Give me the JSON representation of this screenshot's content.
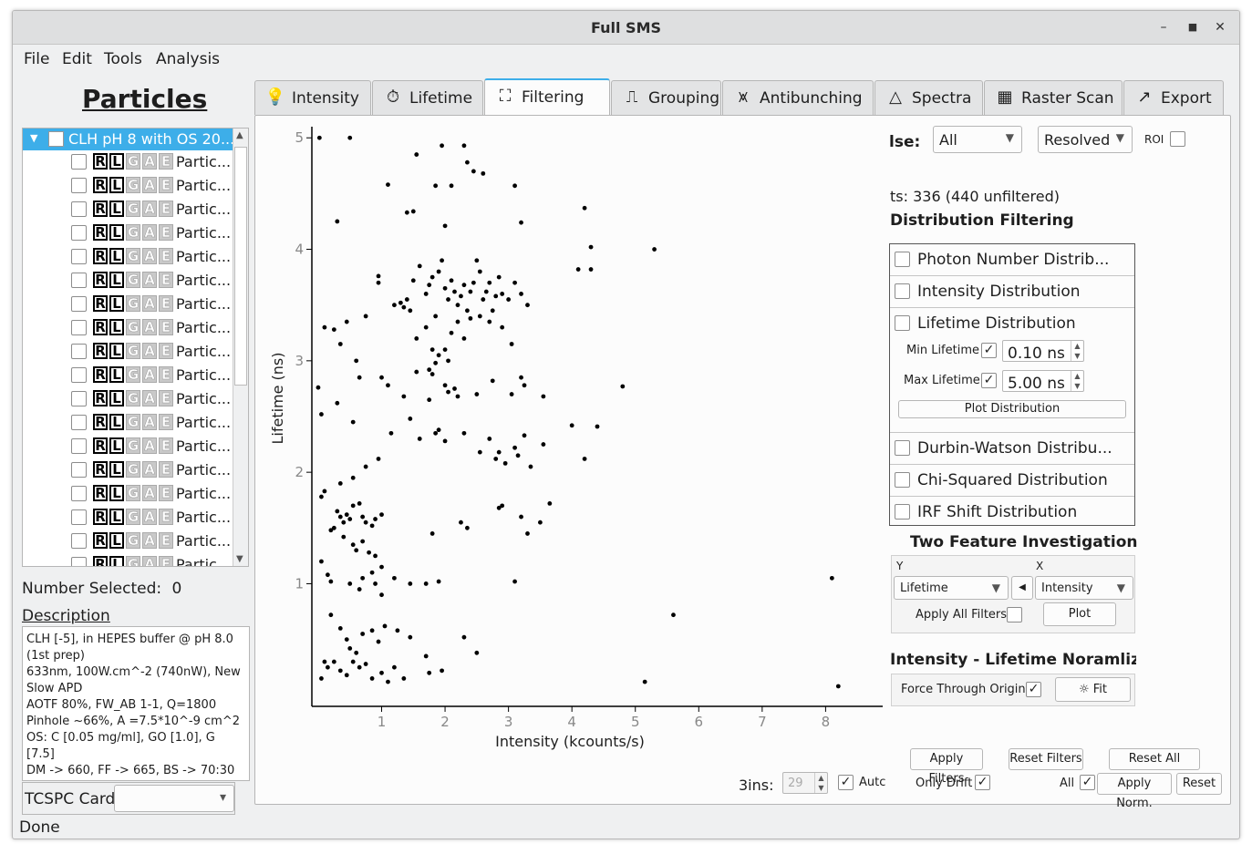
{
  "window": {
    "title": "Full SMS"
  },
  "menu": [
    "File",
    "Edit",
    "Tools",
    "Analysis"
  ],
  "left": {
    "title": "Particles",
    "root_label": "CLH pH 8 with OS 20...",
    "particle_label": "Partic...",
    "badges": [
      "R",
      "L",
      "G",
      "A",
      "E"
    ],
    "number_selected_label": "Number Selected:",
    "number_selected": "0",
    "description_label": "Description",
    "description": [
      "CLH [-5], in HEPES buffer @ pH 8.0 (1st prep)",
      "633nm, 100W.cm^-2 (740nW), New Slow APD",
      "AOTF 80%, FW_AB 1-1, Q=1800",
      "Pinhole ~66%, A =7.5*10^-9 cm^2",
      "OS: C [0.05 mg/ml], GO [1.0], G [7.5]",
      "DM -> 660, FF -> 665, BS -> 70:30"
    ],
    "tcspc_label": "TCSPC Card:"
  },
  "tabs": [
    {
      "label": "Intensity",
      "icon": "lightbulb-icon"
    },
    {
      "label": "Lifetime",
      "icon": "stopwatch-icon"
    },
    {
      "label": "Filtering",
      "icon": "filter-chart-icon"
    },
    {
      "label": "Grouping",
      "icon": "grouping-icon"
    },
    {
      "label": "Antibunching",
      "icon": "antibunching-icon"
    },
    {
      "label": "Spectra",
      "icon": "prism-icon"
    },
    {
      "label": "Raster Scan",
      "icon": "raster-icon"
    },
    {
      "label": "Export",
      "icon": "export-icon"
    }
  ],
  "filtering": {
    "use_label": "lse:",
    "use_value": "All",
    "mode_value": "Resolved",
    "roi_label": "ROI",
    "points_text": "ts: 336 (440 unfiltered)",
    "dist_filtering_title": "Distribution Filtering",
    "distributions": [
      "Photon Number Distrib...",
      "Intensity Distribution",
      "Lifetime Distribution",
      "Durbin-Watson Distribu...",
      "Chi-Squared Distribution",
      "IRF Shift Distribution"
    ],
    "min_lifetime_label": "Min Lifetime",
    "min_lifetime_value": "0.10 ns",
    "max_lifetime_label": "Max Lifetime",
    "max_lifetime_value": "5.00 ns",
    "plot_distribution_label": "Plot Distribution",
    "two_feature_title": "Two Feature Investigation",
    "y_label": "Y",
    "x_label": "X",
    "y_value": "Lifetime",
    "x_value": "Intensity",
    "apply_all_filters_label": "Apply All Filters",
    "plot_label": "Plot",
    "norm_title": "Intensity - Lifetime Noramlizatio",
    "force_origin_label": "Force Through Origin",
    "fit_label": "Fit",
    "bins_label": "3ins:",
    "bins_value": "29",
    "auto_label": "Autc",
    "apply_filters_label": "Apply Filters",
    "reset_filters_label": "Reset Filters",
    "reset_all_filters_label": "Reset All Filters",
    "only_drift_label": "Only Drift",
    "all_label": "All",
    "apply_norm_label": "Apply Norm.",
    "reset_label": "Reset"
  },
  "chart_data": {
    "type": "scatter",
    "xlabel": "Intensity (kcounts/s)",
    "ylabel": "Lifetime (ns)",
    "xlim": [
      -0.1,
      8.9
    ],
    "ylim": [
      -0.1,
      5.1
    ],
    "xticks": [
      1,
      2,
      3,
      4,
      5,
      6,
      7,
      8
    ],
    "yticks": [
      1,
      2,
      3,
      4,
      5
    ],
    "points": [
      [
        0.02,
        5.0
      ],
      [
        0.5,
        5.0
      ],
      [
        1.55,
        4.85
      ],
      [
        1.95,
        4.93
      ],
      [
        2.3,
        4.93
      ],
      [
        2.35,
        4.78
      ],
      [
        2.45,
        4.7
      ],
      [
        2.6,
        4.68
      ],
      [
        1.1,
        4.58
      ],
      [
        1.85,
        4.57
      ],
      [
        2.1,
        4.57
      ],
      [
        3.1,
        4.57
      ],
      [
        0.3,
        4.25
      ],
      [
        1.4,
        4.33
      ],
      [
        1.5,
        4.34
      ],
      [
        2.0,
        4.21
      ],
      [
        3.2,
        4.24
      ],
      [
        4.2,
        4.37
      ],
      [
        5.3,
        4.0
      ],
      [
        4.3,
        4.02
      ],
      [
        4.1,
        3.82
      ],
      [
        4.3,
        3.82
      ],
      [
        0.95,
        3.76
      ],
      [
        0.95,
        3.7
      ],
      [
        1.3,
        3.52
      ],
      [
        1.35,
        3.48
      ],
      [
        1.2,
        3.5
      ],
      [
        1.4,
        3.55
      ],
      [
        1.5,
        3.72
      ],
      [
        1.6,
        3.85
      ],
      [
        1.7,
        3.6
      ],
      [
        1.75,
        3.68
      ],
      [
        1.8,
        3.75
      ],
      [
        1.85,
        3.4
      ],
      [
        1.9,
        3.8
      ],
      [
        1.95,
        3.9
      ],
      [
        2.0,
        3.65
      ],
      [
        2.05,
        3.55
      ],
      [
        2.1,
        3.72
      ],
      [
        2.15,
        3.62
      ],
      [
        2.2,
        3.5
      ],
      [
        2.25,
        3.58
      ],
      [
        2.3,
        3.68
      ],
      [
        2.35,
        3.45
      ],
      [
        2.4,
        3.62
      ],
      [
        2.45,
        3.7
      ],
      [
        2.5,
        3.9
      ],
      [
        2.55,
        3.8
      ],
      [
        2.6,
        3.55
      ],
      [
        2.65,
        3.62
      ],
      [
        2.7,
        3.7
      ],
      [
        2.75,
        3.45
      ],
      [
        2.8,
        3.58
      ],
      [
        2.85,
        3.75
      ],
      [
        2.9,
        3.6
      ],
      [
        3.0,
        3.55
      ],
      [
        3.1,
        3.7
      ],
      [
        3.2,
        3.6
      ],
      [
        3.3,
        3.5
      ],
      [
        1.7,
        3.3
      ],
      [
        1.8,
        3.1
      ],
      [
        1.85,
        2.98
      ],
      [
        1.9,
        3.05
      ],
      [
        2.0,
        3.1
      ],
      [
        2.05,
        3.0
      ],
      [
        1.75,
        2.92
      ],
      [
        1.8,
        2.88
      ],
      [
        2.1,
        3.25
      ],
      [
        2.2,
        3.35
      ],
      [
        2.3,
        3.2
      ],
      [
        2.4,
        3.38
      ],
      [
        2.55,
        3.4
      ],
      [
        2.7,
        3.35
      ],
      [
        2.9,
        3.3
      ],
      [
        3.05,
        3.15
      ],
      [
        1.55,
        3.2
      ],
      [
        1.45,
        3.45
      ],
      [
        0.75,
        3.4
      ],
      [
        0.45,
        3.35
      ],
      [
        0.1,
        3.3
      ],
      [
        0.25,
        3.28
      ],
      [
        0.35,
        3.15
      ],
      [
        0.6,
        3.0
      ],
      [
        0.65,
        2.85
      ],
      [
        0.0,
        2.76
      ],
      [
        0.3,
        2.62
      ],
      [
        0.05,
        2.52
      ],
      [
        0.55,
        2.45
      ],
      [
        1.0,
        2.85
      ],
      [
        1.1,
        2.78
      ],
      [
        1.35,
        2.68
      ],
      [
        1.55,
        2.9
      ],
      [
        1.75,
        2.65
      ],
      [
        2.0,
        2.78
      ],
      [
        2.05,
        2.72
      ],
      [
        2.15,
        2.75
      ],
      [
        2.2,
        2.68
      ],
      [
        2.5,
        2.7
      ],
      [
        2.75,
        2.82
      ],
      [
        3.05,
        2.7
      ],
      [
        3.2,
        2.85
      ],
      [
        3.25,
        2.78
      ],
      [
        3.55,
        2.68
      ],
      [
        4.8,
        2.77
      ],
      [
        1.15,
        2.35
      ],
      [
        1.45,
        2.48
      ],
      [
        1.6,
        2.3
      ],
      [
        1.85,
        2.35
      ],
      [
        1.9,
        2.38
      ],
      [
        2.0,
        2.28
      ],
      [
        2.3,
        2.35
      ],
      [
        2.55,
        2.18
      ],
      [
        2.7,
        2.3
      ],
      [
        2.8,
        2.12
      ],
      [
        2.85,
        2.18
      ],
      [
        2.95,
        2.08
      ],
      [
        3.1,
        2.22
      ],
      [
        3.25,
        2.33
      ],
      [
        3.15,
        2.15
      ],
      [
        3.35,
        2.05
      ],
      [
        3.55,
        2.25
      ],
      [
        4.0,
        2.42
      ],
      [
        4.4,
        2.41
      ],
      [
        4.2,
        2.12
      ],
      [
        0.95,
        2.12
      ],
      [
        0.75,
        2.05
      ],
      [
        0.55,
        1.95
      ],
      [
        0.35,
        1.9
      ],
      [
        0.05,
        1.78
      ],
      [
        0.1,
        1.83
      ],
      [
        0.3,
        1.65
      ],
      [
        0.35,
        1.6
      ],
      [
        0.4,
        1.55
      ],
      [
        0.45,
        1.62
      ],
      [
        0.5,
        1.58
      ],
      [
        0.55,
        1.7
      ],
      [
        0.65,
        1.72
      ],
      [
        0.7,
        1.6
      ],
      [
        0.75,
        1.55
      ],
      [
        0.85,
        1.52
      ],
      [
        0.9,
        1.58
      ],
      [
        1.0,
        1.62
      ],
      [
        0.2,
        1.48
      ],
      [
        0.25,
        1.5
      ],
      [
        0.4,
        1.42
      ],
      [
        0.55,
        1.35
      ],
      [
        0.6,
        1.3
      ],
      [
        0.7,
        1.38
      ],
      [
        0.8,
        1.28
      ],
      [
        0.9,
        1.25
      ],
      [
        1.0,
        1.15
      ],
      [
        0.05,
        1.2
      ],
      [
        0.15,
        1.08
      ],
      [
        0.2,
        1.02
      ],
      [
        0.5,
        1.0
      ],
      [
        0.65,
        0.95
      ],
      [
        0.7,
        1.05
      ],
      [
        0.85,
        1.1
      ],
      [
        0.9,
        1.0
      ],
      [
        1.0,
        0.9
      ],
      [
        1.2,
        1.05
      ],
      [
        1.45,
        1.0
      ],
      [
        1.7,
        1.0
      ],
      [
        1.8,
        1.45
      ],
      [
        2.25,
        1.55
      ],
      [
        2.35,
        1.5
      ],
      [
        2.85,
        1.68
      ],
      [
        3.2,
        1.6
      ],
      [
        3.3,
        1.45
      ],
      [
        3.5,
        1.55
      ],
      [
        3.65,
        1.72
      ],
      [
        2.9,
        1.7
      ],
      [
        3.1,
        1.02
      ],
      [
        1.9,
        1.02
      ],
      [
        8.1,
        1.05
      ],
      [
        0.2,
        0.72
      ],
      [
        0.35,
        0.6
      ],
      [
        0.45,
        0.5
      ],
      [
        0.5,
        0.42
      ],
      [
        0.6,
        0.38
      ],
      [
        0.7,
        0.55
      ],
      [
        0.85,
        0.58
      ],
      [
        0.95,
        0.48
      ],
      [
        1.05,
        0.62
      ],
      [
        1.25,
        0.58
      ],
      [
        1.45,
        0.52
      ],
      [
        1.7,
        0.35
      ],
      [
        2.3,
        0.52
      ],
      [
        2.5,
        0.38
      ],
      [
        5.6,
        0.72
      ],
      [
        5.15,
        0.12
      ],
      [
        8.2,
        0.08
      ],
      [
        0.1,
        0.3
      ],
      [
        0.15,
        0.25
      ],
      [
        0.25,
        0.3
      ],
      [
        0.35,
        0.22
      ],
      [
        0.45,
        0.18
      ],
      [
        0.55,
        0.3
      ],
      [
        0.65,
        0.25
      ],
      [
        0.75,
        0.28
      ],
      [
        0.85,
        0.15
      ],
      [
        1.0,
        0.2
      ],
      [
        1.1,
        0.12
      ],
      [
        1.2,
        0.25
      ],
      [
        1.35,
        0.15
      ],
      [
        1.75,
        0.2
      ],
      [
        1.95,
        0.22
      ],
      [
        0.05,
        0.15
      ]
    ]
  }
}
